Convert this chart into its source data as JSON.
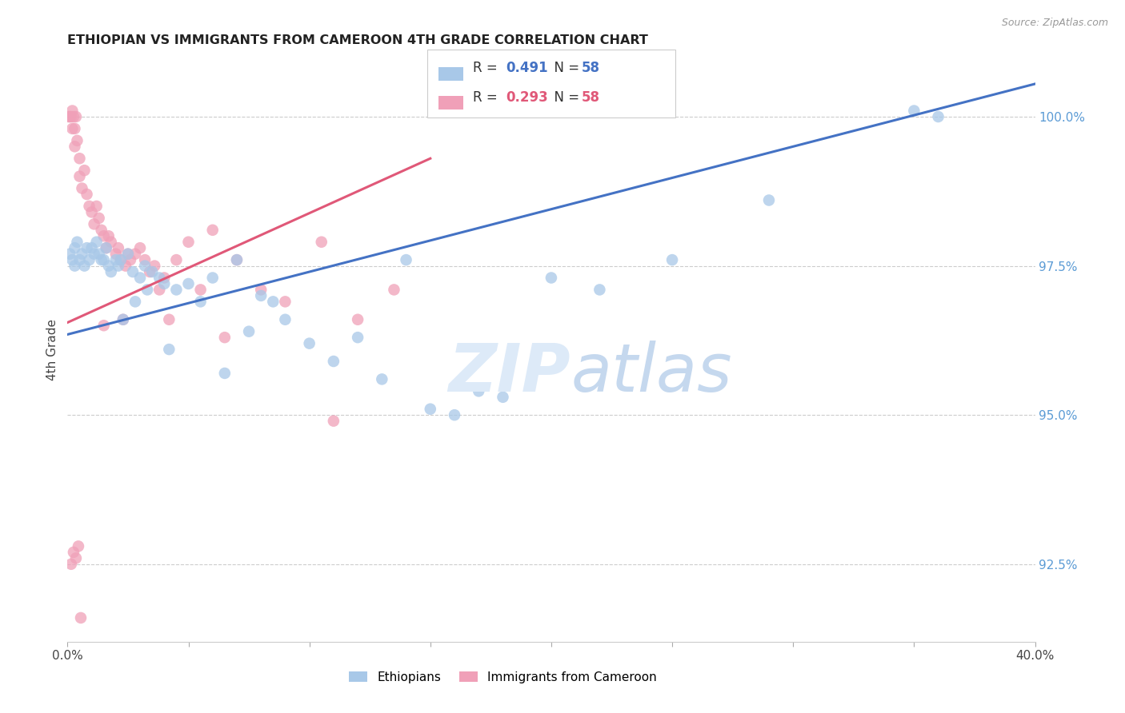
{
  "title": "ETHIOPIAN VS IMMIGRANTS FROM CAMEROON 4TH GRADE CORRELATION CHART",
  "source": "Source: ZipAtlas.com",
  "ylabel": "4th Grade",
  "x_range": [
    0.0,
    40.0
  ],
  "y_range": [
    91.2,
    101.0
  ],
  "blue_color": "#A8C8E8",
  "pink_color": "#F0A0B8",
  "blue_line_color": "#4472C4",
  "pink_line_color": "#E05878",
  "legend_blue_R": "0.491",
  "legend_blue_N": "58",
  "legend_pink_R": "0.293",
  "legend_pink_N": "58",
  "y_ticks": [
    92.5,
    95.0,
    97.5,
    100.0
  ],
  "blue_points_x": [
    0.1,
    0.2,
    0.3,
    0.3,
    0.4,
    0.5,
    0.6,
    0.7,
    0.8,
    0.9,
    1.0,
    1.1,
    1.2,
    1.3,
    1.5,
    1.6,
    1.7,
    1.8,
    2.0,
    2.1,
    2.2,
    2.5,
    2.7,
    3.0,
    3.2,
    3.5,
    3.8,
    4.0,
    4.5,
    5.0,
    5.5,
    6.0,
    7.0,
    7.5,
    8.0,
    9.0,
    10.0,
    11.0,
    12.0,
    13.0,
    14.0,
    16.0,
    18.0,
    20.0,
    22.0,
    25.0,
    29.0,
    35.0,
    36.0,
    1.4,
    2.3,
    2.8,
    3.3,
    4.2,
    6.5,
    8.5,
    15.0,
    17.0
  ],
  "blue_points_y": [
    97.7,
    97.6,
    97.8,
    97.5,
    97.9,
    97.6,
    97.7,
    97.5,
    97.8,
    97.6,
    97.8,
    97.7,
    97.9,
    97.7,
    97.6,
    97.8,
    97.5,
    97.4,
    97.6,
    97.5,
    97.6,
    97.7,
    97.4,
    97.3,
    97.5,
    97.4,
    97.3,
    97.2,
    97.1,
    97.2,
    96.9,
    97.3,
    97.6,
    96.4,
    97.0,
    96.6,
    96.2,
    95.9,
    96.3,
    95.6,
    97.6,
    95.0,
    95.3,
    97.3,
    97.1,
    97.6,
    98.6,
    100.1,
    100.0,
    97.6,
    96.6,
    96.9,
    97.1,
    96.1,
    95.7,
    96.9,
    95.1,
    95.4
  ],
  "pink_points_x": [
    0.05,
    0.1,
    0.15,
    0.2,
    0.2,
    0.25,
    0.3,
    0.3,
    0.35,
    0.4,
    0.5,
    0.5,
    0.6,
    0.7,
    0.8,
    0.9,
    1.0,
    1.1,
    1.2,
    1.3,
    1.4,
    1.5,
    1.6,
    1.7,
    1.8,
    2.0,
    2.1,
    2.2,
    2.4,
    2.5,
    2.6,
    2.8,
    3.0,
    3.2,
    3.4,
    3.6,
    3.8,
    4.0,
    4.5,
    5.0,
    5.5,
    6.0,
    7.0,
    8.0,
    9.0,
    10.5,
    12.0,
    13.5,
    0.15,
    0.25,
    0.35,
    0.45,
    0.55,
    1.5,
    2.3,
    4.2,
    6.5,
    11.0
  ],
  "pink_points_y": [
    100.0,
    100.0,
    100.0,
    100.1,
    99.8,
    100.0,
    99.8,
    99.5,
    100.0,
    99.6,
    99.3,
    99.0,
    98.8,
    99.1,
    98.7,
    98.5,
    98.4,
    98.2,
    98.5,
    98.3,
    98.1,
    98.0,
    97.8,
    98.0,
    97.9,
    97.7,
    97.8,
    97.6,
    97.5,
    97.7,
    97.6,
    97.7,
    97.8,
    97.6,
    97.4,
    97.5,
    97.1,
    97.3,
    97.6,
    97.9,
    97.1,
    98.1,
    97.6,
    97.1,
    96.9,
    97.9,
    96.6,
    97.1,
    92.5,
    92.7,
    92.6,
    92.8,
    91.6,
    96.5,
    96.6,
    96.6,
    96.3,
    94.9
  ],
  "blue_line_x": [
    0.0,
    40.0
  ],
  "blue_line_y": [
    96.35,
    100.55
  ],
  "pink_line_x": [
    0.0,
    15.0
  ],
  "pink_line_y": [
    96.55,
    99.3
  ]
}
